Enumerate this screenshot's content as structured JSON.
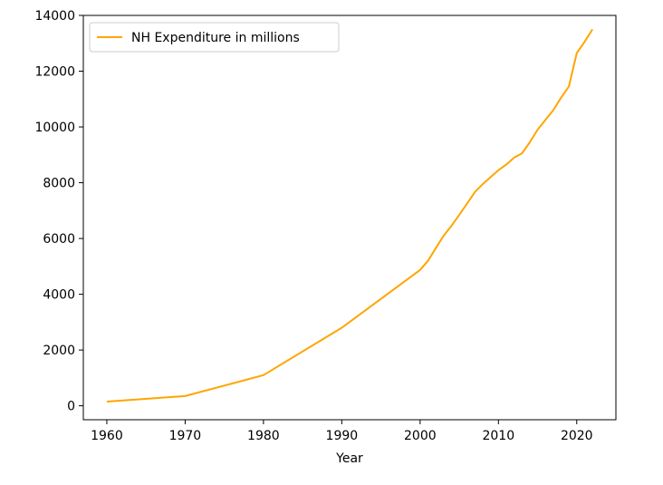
{
  "chart_data": {
    "type": "line",
    "title": "",
    "xlabel": "Year",
    "ylabel": "",
    "xlim": [
      1957,
      2025
    ],
    "ylim": [
      -500,
      14000
    ],
    "xticks": [
      1960,
      1970,
      1980,
      1990,
      2000,
      2010,
      2020
    ],
    "yticks": [
      0,
      2000,
      4000,
      6000,
      8000,
      10000,
      12000,
      14000
    ],
    "grid": false,
    "legend_position": "top-left",
    "series": [
      {
        "name": "NH Expenditure in millions",
        "color": "#FFA500",
        "x": [
          1960,
          1970,
          1980,
          1990,
          2000,
          2001,
          2002,
          2003,
          2004,
          2005,
          2006,
          2007,
          2008,
          2009,
          2010,
          2011,
          2012,
          2013,
          2014,
          2015,
          2016,
          2017,
          2018,
          2019,
          2020,
          2021,
          2022
        ],
        "y": [
          150,
          350,
          1100,
          2800,
          4870,
          5200,
          5650,
          6100,
          6450,
          6850,
          7250,
          7670,
          7950,
          8200,
          8450,
          8650,
          8900,
          9050,
          9450,
          9900,
          10250,
          10600,
          11050,
          11450,
          12650,
          13050,
          13500
        ]
      }
    ]
  }
}
